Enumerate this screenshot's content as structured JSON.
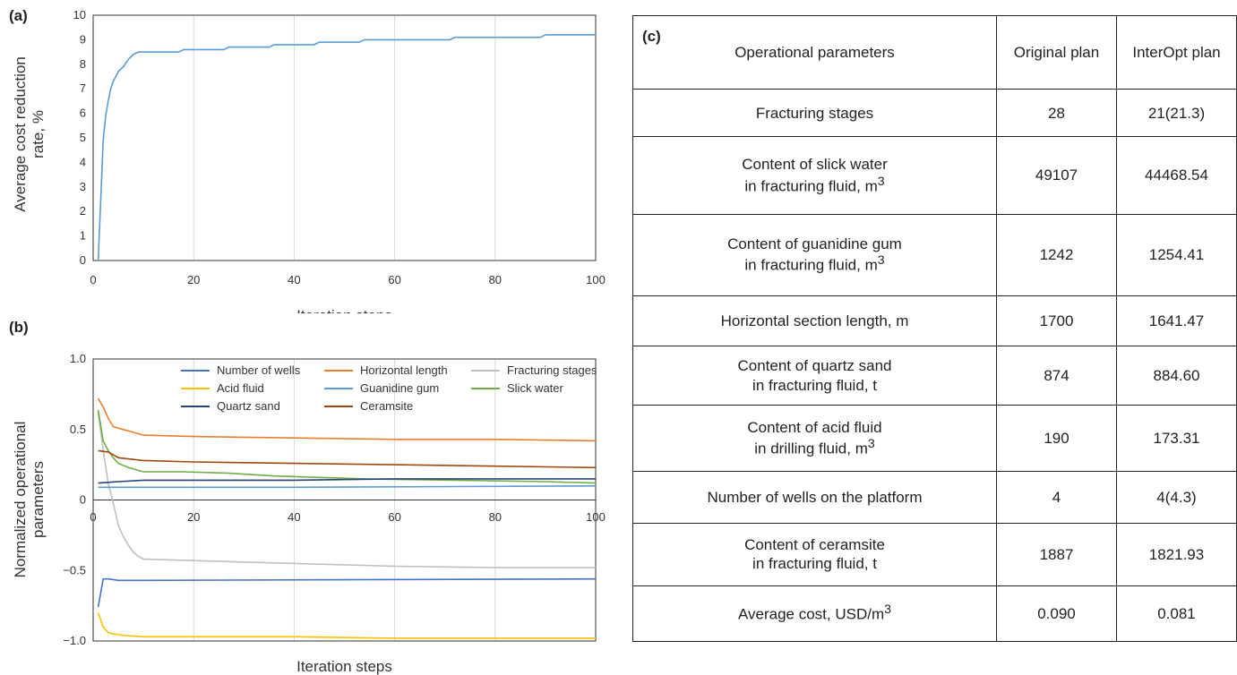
{
  "panels": {
    "a": "(a)",
    "b": "(b)",
    "c": "(c)"
  },
  "chart_data": [
    {
      "type": "line",
      "xlabel": "Iteration steps",
      "ylabel": "Average cost reduction rate, %",
      "xlim": [
        0,
        100
      ],
      "ylim": [
        0,
        10
      ],
      "xticks": [
        "0",
        "20",
        "40",
        "60",
        "80",
        "100"
      ],
      "yticks": [
        "0",
        "1",
        "2",
        "3",
        "4",
        "5",
        "6",
        "7",
        "8",
        "9",
        "10"
      ],
      "grid": "vertical",
      "series": [
        {
          "color": "#5b9bd5",
          "x": [
            1,
            1.5,
            2,
            2.5,
            3,
            3.5,
            4,
            5,
            6,
            7,
            8,
            9,
            10,
            11,
            17,
            18,
            26,
            27,
            35,
            36,
            44,
            45,
            53,
            54,
            71,
            72,
            89,
            90,
            100
          ],
          "y": [
            0,
            2.4,
            4.9,
            5.9,
            6.5,
            7.0,
            7.3,
            7.7,
            7.9,
            8.2,
            8.4,
            8.5,
            8.5,
            8.5,
            8.5,
            8.6,
            8.6,
            8.7,
            8.7,
            8.8,
            8.8,
            8.9,
            8.9,
            9.0,
            9.0,
            9.1,
            9.1,
            9.2,
            9.2
          ]
        }
      ]
    },
    {
      "type": "line",
      "xlabel": "Iteration steps",
      "ylabel": "Normalized operational parameters",
      "xlim": [
        0,
        100
      ],
      "ylim": [
        -1.0,
        1.0
      ],
      "xticks": [
        "0",
        "20",
        "40",
        "60",
        "80",
        "100"
      ],
      "yticks": [
        "1.0",
        "0.5",
        "0",
        "−0.5",
        "−1.0"
      ],
      "grid": "vertical",
      "legend": "top-right",
      "series": [
        {
          "name": "Number of wells",
          "color": "#4472c4",
          "x": [
            1,
            2,
            3,
            5,
            10,
            100
          ],
          "y": [
            -0.76,
            -0.56,
            -0.56,
            -0.57,
            -0.57,
            -0.56
          ]
        },
        {
          "name": "Horizontal length",
          "color": "#ed7d31",
          "x": [
            1,
            2,
            3,
            4,
            6,
            8,
            10,
            20,
            40,
            60,
            80,
            100
          ],
          "y": [
            0.72,
            0.66,
            0.58,
            0.52,
            0.5,
            0.48,
            0.46,
            0.45,
            0.44,
            0.43,
            0.43,
            0.42
          ]
        },
        {
          "name": "Fracturing stages",
          "color": "#bfbfbf",
          "x": [
            1,
            2,
            3,
            4,
            5,
            6,
            7,
            8,
            9,
            10,
            20,
            40,
            60,
            80,
            100
          ],
          "y": [
            0.62,
            0.35,
            0.12,
            -0.02,
            -0.18,
            -0.26,
            -0.32,
            -0.37,
            -0.4,
            -0.42,
            -0.43,
            -0.45,
            -0.47,
            -0.48,
            -0.48
          ]
        },
        {
          "name": "Acid fluid",
          "color": "#ffc000",
          "x": [
            1,
            2,
            3,
            4,
            6,
            10,
            20,
            40,
            60,
            80,
            100
          ],
          "y": [
            -0.8,
            -0.9,
            -0.94,
            -0.95,
            -0.96,
            -0.97,
            -0.97,
            -0.97,
            -0.98,
            -0.98,
            -0.98
          ]
        },
        {
          "name": "Guanidine gum",
          "color": "#5b9bd5",
          "x": [
            1,
            10,
            40,
            100
          ],
          "y": [
            0.09,
            0.09,
            0.09,
            0.1
          ]
        },
        {
          "name": "Slick water",
          "color": "#70ad47",
          "x": [
            1,
            2,
            3,
            4,
            5,
            7,
            10,
            18,
            27,
            36,
            45,
            54,
            72,
            90,
            100
          ],
          "y": [
            0.64,
            0.42,
            0.35,
            0.3,
            0.26,
            0.23,
            0.2,
            0.2,
            0.19,
            0.17,
            0.16,
            0.15,
            0.14,
            0.13,
            0.12
          ]
        },
        {
          "name": "Quartz sand",
          "color": "#264478",
          "x": [
            1,
            5,
            10,
            40,
            60,
            100
          ],
          "y": [
            0.12,
            0.13,
            0.14,
            0.14,
            0.15,
            0.15
          ]
        },
        {
          "name": "Ceramsite",
          "color": "#9e480e",
          "x": [
            1,
            3,
            5,
            10,
            20,
            40,
            60,
            80,
            100
          ],
          "y": [
            0.35,
            0.34,
            0.3,
            0.28,
            0.27,
            0.26,
            0.25,
            0.24,
            0.23
          ]
        }
      ]
    },
    {
      "type": "table",
      "header": {
        "param": "Operational parameters",
        "orig": "Original plan",
        "opt": "InterOpt plan"
      },
      "rows": [
        {
          "l1": "Fracturing stages",
          "l2": "",
          "unit": "",
          "orig": "28",
          "opt": "21(21.3)"
        },
        {
          "l1": "Content of slick water",
          "l2": "in fracturing fluid, m",
          "unit": "3",
          "orig": "49107",
          "opt": "44468.54"
        },
        {
          "l1": "Content of guanidine gum",
          "l2": "in fracturing fluid, m",
          "unit": "3",
          "orig": "1242",
          "opt": "1254.41"
        },
        {
          "l1": "Horizontal section length, m",
          "l2": "",
          "unit": "",
          "orig": "1700",
          "opt": "1641.47"
        },
        {
          "l1": "Content of quartz sand",
          "l2": "in fracturing fluid, t",
          "unit": "",
          "orig": "874",
          "opt": "884.60"
        },
        {
          "l1": "Content of acid fluid",
          "l2": "in drilling fluid, m",
          "unit": "3",
          "orig": "190",
          "opt": "173.31"
        },
        {
          "l1": "Number of wells on the platform",
          "l2": "",
          "unit": "",
          "orig": "4",
          "opt": "4(4.3)"
        },
        {
          "l1": "Content of ceramsite",
          "l2": "in fracturing fluid, t",
          "unit": "",
          "orig": "1887",
          "opt": "1821.93"
        },
        {
          "l1": "Average cost, USD/m",
          "l2": "",
          "unit": "3",
          "orig": "0.090",
          "opt": "0.081"
        }
      ]
    }
  ]
}
